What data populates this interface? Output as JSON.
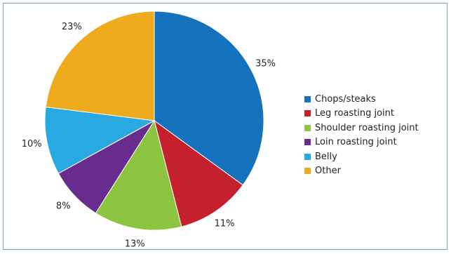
{
  "chart_data": {
    "type": "pie",
    "categories": [
      "Chops/steaks",
      "Leg roasting joint",
      "Shoulder roasting joint",
      "Loin roasting joint",
      "Belly",
      "Other"
    ],
    "values": [
      35,
      11,
      13,
      8,
      10,
      23
    ],
    "value_labels": [
      "35%",
      "11%",
      "13%",
      "8%",
      "10%",
      "23%"
    ],
    "colors": [
      "#1573bd",
      "#c4202e",
      "#8cc43f",
      "#682c8e",
      "#28a9e1",
      "#eeab1d"
    ],
    "start": "12 o'clock",
    "direction": "clockwise",
    "legend": "right"
  }
}
